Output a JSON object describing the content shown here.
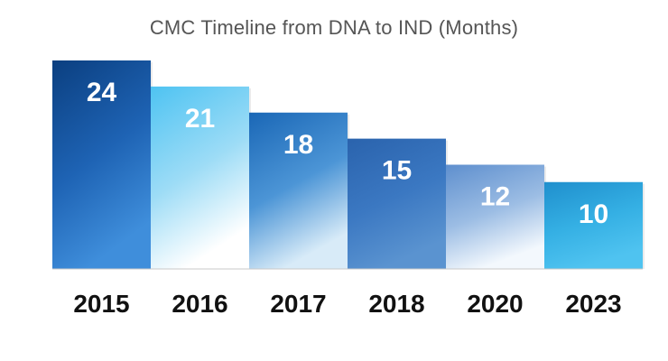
{
  "chart_data": {
    "type": "bar",
    "title": "CMC Timeline from DNA to IND (Months)",
    "categories": [
      "2015",
      "2016",
      "2017",
      "2018",
      "2020",
      "2023"
    ],
    "values": [
      24,
      21,
      18,
      15,
      12,
      10
    ],
    "xlabel": "",
    "ylabel": "",
    "ylim": [
      0,
      24
    ],
    "grid": false,
    "legend": "none",
    "bar_colors": [
      [
        "#0b3f80",
        "#1e63b4",
        "#3f8edb"
      ],
      [
        "#4ec3f2",
        "#9ddcf6",
        "#ffffff"
      ],
      [
        "#1a67b6",
        "#4c95d6",
        "#d8ebf8"
      ],
      [
        "#2a63ad",
        "#3b78c2",
        "#5a93d0"
      ],
      [
        "#5e8fce",
        "#9cbde4",
        "#f3f8fd"
      ],
      [
        "#1f8fcd",
        "#35b0e4",
        "#4fc3f0"
      ]
    ]
  }
}
